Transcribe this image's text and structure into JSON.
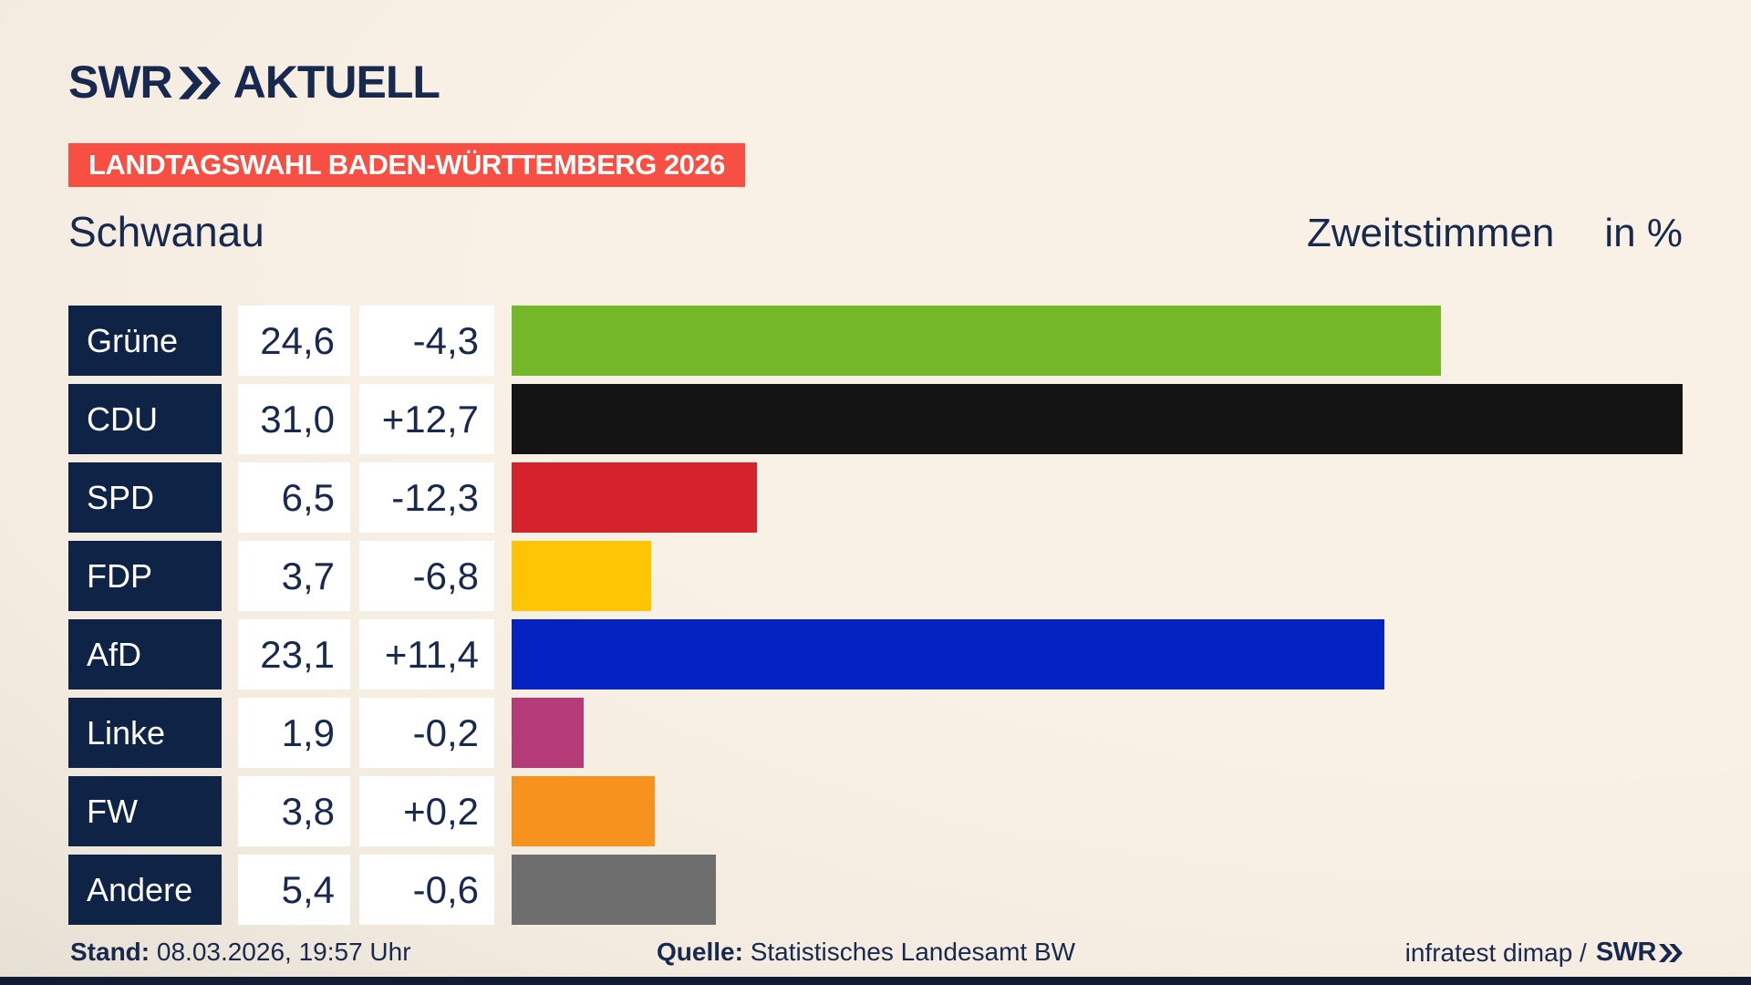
{
  "header": {
    "logo_swr": "SWR",
    "logo_aktuell": "AKTUELL",
    "banner": "LANDTAGSWAHL BADEN-WÜRTTEMBERG 2026",
    "municipality": "Schwanau",
    "vote_type": "Zweitstimmen",
    "unit": "in %"
  },
  "chart_data": {
    "type": "bar",
    "orientation": "horizontal",
    "title": "Zweitstimmen in %",
    "categories": [
      "Grüne",
      "CDU",
      "SPD",
      "FDP",
      "AfD",
      "Linke",
      "FW",
      "Andere"
    ],
    "values": [
      24.6,
      31.0,
      6.5,
      3.7,
      23.1,
      1.9,
      3.8,
      5.4
    ],
    "changes": [
      -4.3,
      12.7,
      -12.3,
      -6.8,
      11.4,
      -0.2,
      0.2,
      -0.6
    ],
    "xlim": [
      0,
      31.0
    ],
    "grid": false,
    "legend": "none",
    "rows": [
      {
        "party": "Grüne",
        "value_label": "24,6",
        "change_label": "-4,3",
        "value": 24.6,
        "color": "#74b729"
      },
      {
        "party": "CDU",
        "value_label": "31,0",
        "change_label": "+12,7",
        "value": 31.0,
        "color": "#141414"
      },
      {
        "party": "SPD",
        "value_label": "6,5",
        "change_label": "-12,3",
        "value": 6.5,
        "color": "#d4232b"
      },
      {
        "party": "FDP",
        "value_label": "3,7",
        "change_label": "-6,8",
        "value": 3.7,
        "color": "#fdc503"
      },
      {
        "party": "AfD",
        "value_label": "23,1",
        "change_label": "+11,4",
        "value": 23.1,
        "color": "#0522c3"
      },
      {
        "party": "Linke",
        "value_label": "1,9",
        "change_label": "-0,2",
        "value": 1.9,
        "color": "#b43a78"
      },
      {
        "party": "FW",
        "value_label": "3,8",
        "change_label": "+0,2",
        "value": 3.8,
        "color": "#f7921e"
      },
      {
        "party": "Andere",
        "value_label": "5,4",
        "change_label": "-0,6",
        "value": 5.4,
        "color": "#6e6e6e"
      }
    ]
  },
  "footer": {
    "stand_label": "Stand:",
    "stand_value": "08.03.2026, 19:57 Uhr",
    "quelle_label": "Quelle:",
    "quelle_value": "Statistisches Landesamt BW",
    "credit_text": "infratest dimap /",
    "credit_logo_swr": "SWR"
  },
  "icons": {
    "logo_chevrons": "double-chevron-right"
  },
  "colors": {
    "navy": "#17294e",
    "navy-box": "#0f2347",
    "banner-red": "#f94f43",
    "strip": "#121b33"
  }
}
